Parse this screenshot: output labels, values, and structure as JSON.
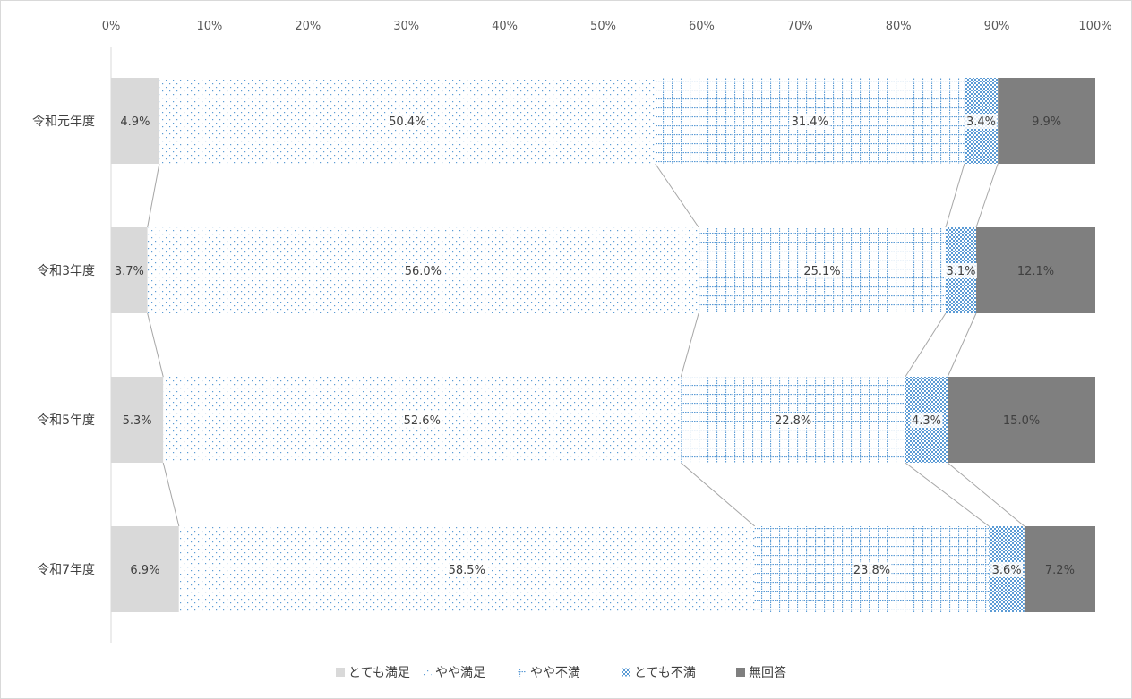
{
  "chart_data": {
    "type": "bar",
    "orientation": "horizontal",
    "stacked": "percent",
    "title": "",
    "xlabel": "",
    "ylabel": "",
    "xlim": [
      0,
      100
    ],
    "x_ticks": [
      "0%",
      "10%",
      "20%",
      "30%",
      "40%",
      "50%",
      "60%",
      "70%",
      "80%",
      "90%",
      "100%"
    ],
    "grid": false,
    "series_connectors": true,
    "legend_position": "bottom",
    "categories": [
      "令和元年度",
      "令和3年度",
      "令和5年度",
      "令和7年度"
    ],
    "series": [
      {
        "name": "とても満足",
        "values": [
          4.9,
          3.7,
          5.3,
          6.9
        ],
        "labels": [
          "4.9%",
          "3.7%",
          "5.3%",
          "6.9%"
        ],
        "color": "#d9d9d9",
        "pattern": "solid"
      },
      {
        "name": "やや満足",
        "values": [
          50.4,
          56.0,
          52.6,
          58.5
        ],
        "labels": [
          "50.4%",
          "56.0%",
          "52.6%",
          "58.5%"
        ],
        "color": "#5b9bd5",
        "pattern": "dots-sparse"
      },
      {
        "name": "やや不満",
        "values": [
          31.4,
          25.1,
          22.8,
          23.8
        ],
        "labels": [
          "31.4%",
          "25.1%",
          "22.8%",
          "23.8%"
        ],
        "color": "#5b9bd5",
        "pattern": "grid"
      },
      {
        "name": "とても不満",
        "values": [
          3.4,
          3.1,
          4.3,
          3.6
        ],
        "labels": [
          "3.4%",
          "3.1%",
          "4.3%",
          "3.6%"
        ],
        "color": "#5b9bd5",
        "pattern": "dense-check"
      },
      {
        "name": "無回答",
        "values": [
          9.9,
          12.1,
          15.0,
          7.2
        ],
        "labels": [
          "9.9%",
          "12.1%",
          "15.0%",
          "7.2%"
        ],
        "color": "#7f7f7f",
        "pattern": "solid"
      }
    ]
  }
}
